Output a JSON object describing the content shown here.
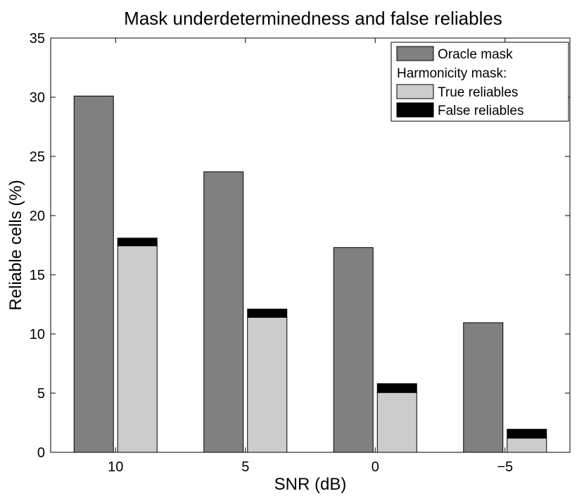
{
  "chart_data": {
    "type": "bar",
    "title": "Mask underdeterminedness and false reliables",
    "xlabel": "SNR (dB)",
    "ylabel": "Reliable cells (%)",
    "categories": [
      "10",
      "5",
      "0",
      "−5"
    ],
    "ylim": [
      0,
      35
    ],
    "yticks": [
      0,
      5,
      10,
      15,
      20,
      25,
      30,
      35
    ],
    "grid": false,
    "legend_position": "top-right",
    "legend_heading": "Harmonicity mask:",
    "series": [
      {
        "name": "Oracle mask",
        "values": [
          30.1,
          23.7,
          17.3,
          10.95
        ],
        "color": "#808080",
        "group": "oracle"
      },
      {
        "name": "True reliables",
        "values": [
          17.45,
          11.4,
          5.05,
          1.2
        ],
        "color": "#cccccc",
        "group": "harmonicity"
      },
      {
        "name": "False reliables",
        "values": [
          0.65,
          0.7,
          0.75,
          0.75
        ],
        "color": "#000000",
        "group": "harmonicity"
      }
    ]
  }
}
